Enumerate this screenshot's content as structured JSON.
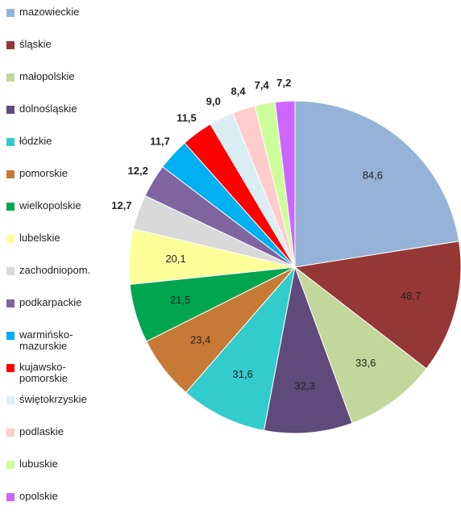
{
  "chart_data": {
    "type": "pie",
    "categories": [
      "mazowieckie",
      "śląskie",
      "małopolskie",
      "dolnośląskie",
      "łódzkie",
      "pomorskie",
      "wielkopolskie",
      "lubelskie",
      "zachodniopom.",
      "podkarpackie",
      "warmińsko-mazurskie",
      "kujawsko-pomorskie",
      "świętokrzyskie",
      "podlaskie",
      "lubuskie",
      "opolskie"
    ],
    "values": [
      84.6,
      48.7,
      33.6,
      32.3,
      31.6,
      23.4,
      21.5,
      20.1,
      12.7,
      12.2,
      11.7,
      11.5,
      9.0,
      8.4,
      7.4,
      7.2
    ],
    "value_labels": [
      "84,6",
      "48,7",
      "33,6",
      "32,3",
      "31,6",
      "23,4",
      "21,5",
      "20,1",
      "12,7",
      "12,2",
      "11,7",
      "11,5",
      "9,0",
      "8,4",
      "7,4",
      "7,2"
    ],
    "colors": [
      "#95b3d7",
      "#953735",
      "#c3d69b",
      "#604a7b",
      "#33cccc",
      "#c77a35",
      "#00a550",
      "#ffff99",
      "#d9d9d9",
      "#8064a2",
      "#00b0f0",
      "#ff0000",
      "#dbeef4",
      "#ffcccc",
      "#ccff99",
      "#cc66ff"
    ],
    "legend": "left"
  }
}
